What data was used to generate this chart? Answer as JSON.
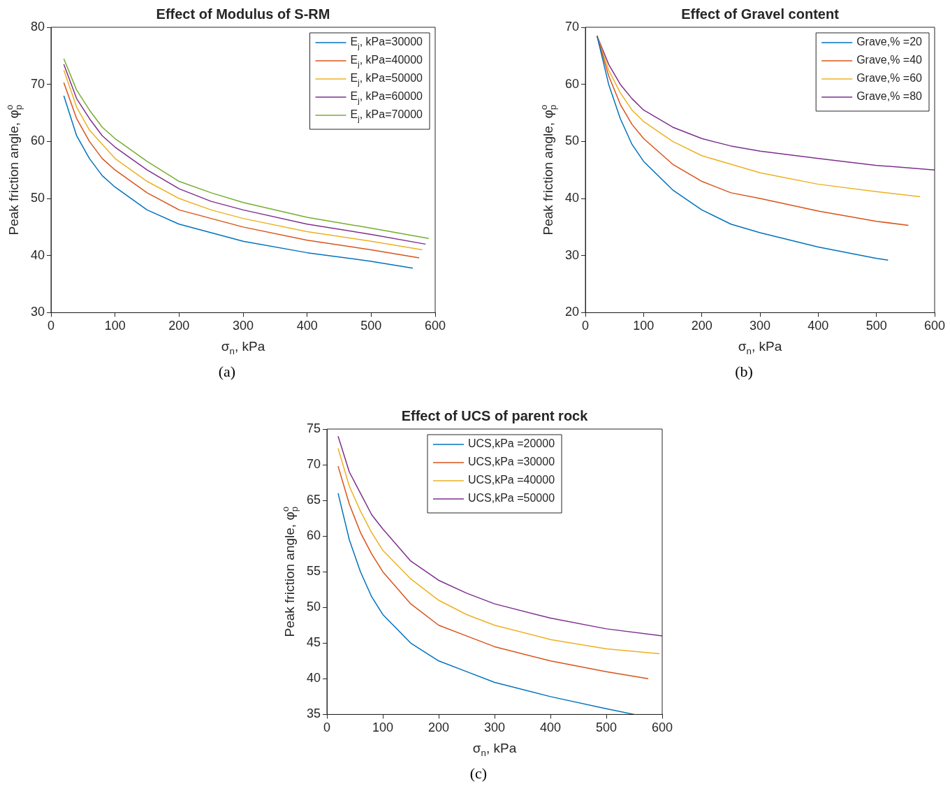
{
  "chart_data": [
    {
      "type": "line",
      "title": "Effect of Modulus of S-RM",
      "xlabel": "σ$_{n}$, kPa",
      "ylabel": "Peak friction angle, φ$_{p}$$^{o}$",
      "xlim": [
        0,
        600
      ],
      "xticks": [
        0,
        100,
        200,
        300,
        400,
        500,
        600
      ],
      "ylim": [
        30,
        80
      ],
      "yticks": [
        30,
        40,
        50,
        60,
        70,
        80
      ],
      "legend": "top right",
      "annotations": [
        "(a)"
      ],
      "series": [
        {
          "name": "E$_{j}$, kPa=30000",
          "color": "#0072bd",
          "x": [
            20,
            40,
            60,
            80,
            100,
            150,
            200,
            250,
            300,
            400,
            500,
            565
          ],
          "values": [
            68,
            61,
            57,
            54,
            52,
            48,
            45.5,
            44,
            42.5,
            40.5,
            39,
            37.8
          ]
        },
        {
          "name": "E$_{j}$, kPa=40000",
          "color": "#d95319",
          "x": [
            20,
            40,
            60,
            80,
            100,
            150,
            200,
            250,
            300,
            400,
            500,
            575
          ],
          "values": [
            70.3,
            64,
            60,
            57,
            55,
            51,
            48,
            46.5,
            45,
            42.7,
            41,
            39.6
          ]
        },
        {
          "name": "E$_{j}$, kPa=50000",
          "color": "#edb120",
          "x": [
            20,
            40,
            60,
            80,
            100,
            150,
            200,
            250,
            300,
            400,
            500,
            580
          ],
          "values": [
            72.5,
            66,
            62,
            59.5,
            57,
            53,
            50,
            48,
            46.5,
            44.2,
            42.5,
            41
          ]
        },
        {
          "name": "E$_{j}$, kPa=60000",
          "color": "#7e2f8e",
          "x": [
            20,
            40,
            60,
            80,
            100,
            150,
            200,
            250,
            300,
            400,
            500,
            585
          ],
          "values": [
            73.5,
            67.5,
            64,
            61,
            59,
            55,
            51.7,
            49.5,
            48,
            45.5,
            43.7,
            42
          ]
        },
        {
          "name": "E$_{j}$, kPa=70000",
          "color": "#77ac30",
          "x": [
            20,
            40,
            60,
            80,
            100,
            150,
            200,
            250,
            300,
            400,
            500,
            590
          ],
          "values": [
            74.5,
            69,
            65.5,
            62.5,
            60.5,
            56.5,
            53,
            51,
            49.3,
            46.7,
            44.8,
            43
          ]
        }
      ]
    },
    {
      "type": "line",
      "title": "Effect of Gravel content",
      "xlabel": "σ$_{n}$, kPa",
      "ylabel": "Peak friction angle, φ$_{p}$$^{o}$",
      "xlim": [
        0,
        600
      ],
      "xticks": [
        0,
        100,
        200,
        300,
        400,
        500,
        600
      ],
      "ylim": [
        20,
        70
      ],
      "yticks": [
        20,
        30,
        40,
        50,
        60,
        70
      ],
      "legend": "top right",
      "annotations": [
        "(b)"
      ],
      "series": [
        {
          "name": "Grave,% =20",
          "color": "#0072bd",
          "x": [
            20,
            40,
            60,
            80,
            100,
            150,
            200,
            250,
            300,
            400,
            500,
            520
          ],
          "values": [
            68.5,
            60,
            54,
            49.5,
            46.5,
            41.5,
            38,
            35.5,
            34,
            31.5,
            29.5,
            29.2
          ]
        },
        {
          "name": "Grave,% =40",
          "color": "#d95319",
          "x": [
            20,
            40,
            60,
            80,
            100,
            150,
            200,
            250,
            300,
            400,
            500,
            555
          ],
          "values": [
            68.5,
            61.5,
            56.5,
            53,
            50.5,
            46,
            43,
            41,
            40,
            37.8,
            36,
            35.3
          ]
        },
        {
          "name": "Grave,% =60",
          "color": "#edb120",
          "x": [
            20,
            40,
            60,
            80,
            100,
            150,
            200,
            250,
            300,
            400,
            500,
            575
          ],
          "values": [
            68.5,
            62.5,
            58.5,
            55.5,
            53.5,
            50,
            47.5,
            46,
            44.5,
            42.5,
            41.2,
            40.3
          ]
        },
        {
          "name": "Grave,% =80",
          "color": "#7e2f8e",
          "x": [
            20,
            40,
            60,
            80,
            100,
            150,
            200,
            250,
            300,
            400,
            500,
            600
          ],
          "values": [
            68.5,
            63.5,
            60,
            57.5,
            55.5,
            52.5,
            50.5,
            49.2,
            48.3,
            47,
            45.8,
            45
          ]
        }
      ]
    },
    {
      "type": "line",
      "title": "Effect of UCS of parent rock",
      "xlabel": "σ$_{n}$, kPa",
      "ylabel": "Peak friction angle, φ$_{p}$$^{o}$",
      "xlim": [
        0,
        600
      ],
      "xticks": [
        0,
        100,
        200,
        300,
        400,
        500,
        600
      ],
      "ylim": [
        35,
        75
      ],
      "yticks": [
        35,
        40,
        45,
        50,
        55,
        60,
        65,
        70,
        75
      ],
      "legend": "top",
      "annotations": [
        "(c)"
      ],
      "series": [
        {
          "name": "UCS,kPa =20000",
          "color": "#0072bd",
          "x": [
            20,
            40,
            60,
            80,
            100,
            150,
            200,
            250,
            300,
            400,
            500,
            550
          ],
          "values": [
            66,
            59.5,
            55,
            51.5,
            49,
            45,
            42.5,
            41,
            39.5,
            37.5,
            35.8,
            35
          ]
        },
        {
          "name": "UCS,kPa =30000",
          "color": "#d95319",
          "x": [
            20,
            40,
            60,
            80,
            100,
            150,
            200,
            250,
            300,
            400,
            500,
            575
          ],
          "values": [
            69.8,
            64.5,
            60.5,
            57.5,
            55,
            50.5,
            47.5,
            46,
            44.5,
            42.5,
            41,
            40
          ]
        },
        {
          "name": "UCS,kPa =40000",
          "color": "#edb120",
          "x": [
            20,
            40,
            60,
            80,
            100,
            150,
            200,
            250,
            300,
            400,
            500,
            595
          ],
          "values": [
            72.3,
            67,
            63.5,
            60.5,
            58,
            54,
            51,
            49,
            47.5,
            45.5,
            44.2,
            43.5
          ]
        },
        {
          "name": "UCS,kPa =50000",
          "color": "#7e2f8e",
          "x": [
            20,
            40,
            60,
            80,
            100,
            150,
            200,
            250,
            300,
            400,
            500,
            600
          ],
          "values": [
            74,
            69,
            66,
            63,
            61,
            56.5,
            53.8,
            52,
            50.5,
            48.5,
            47,
            46
          ]
        }
      ]
    }
  ]
}
